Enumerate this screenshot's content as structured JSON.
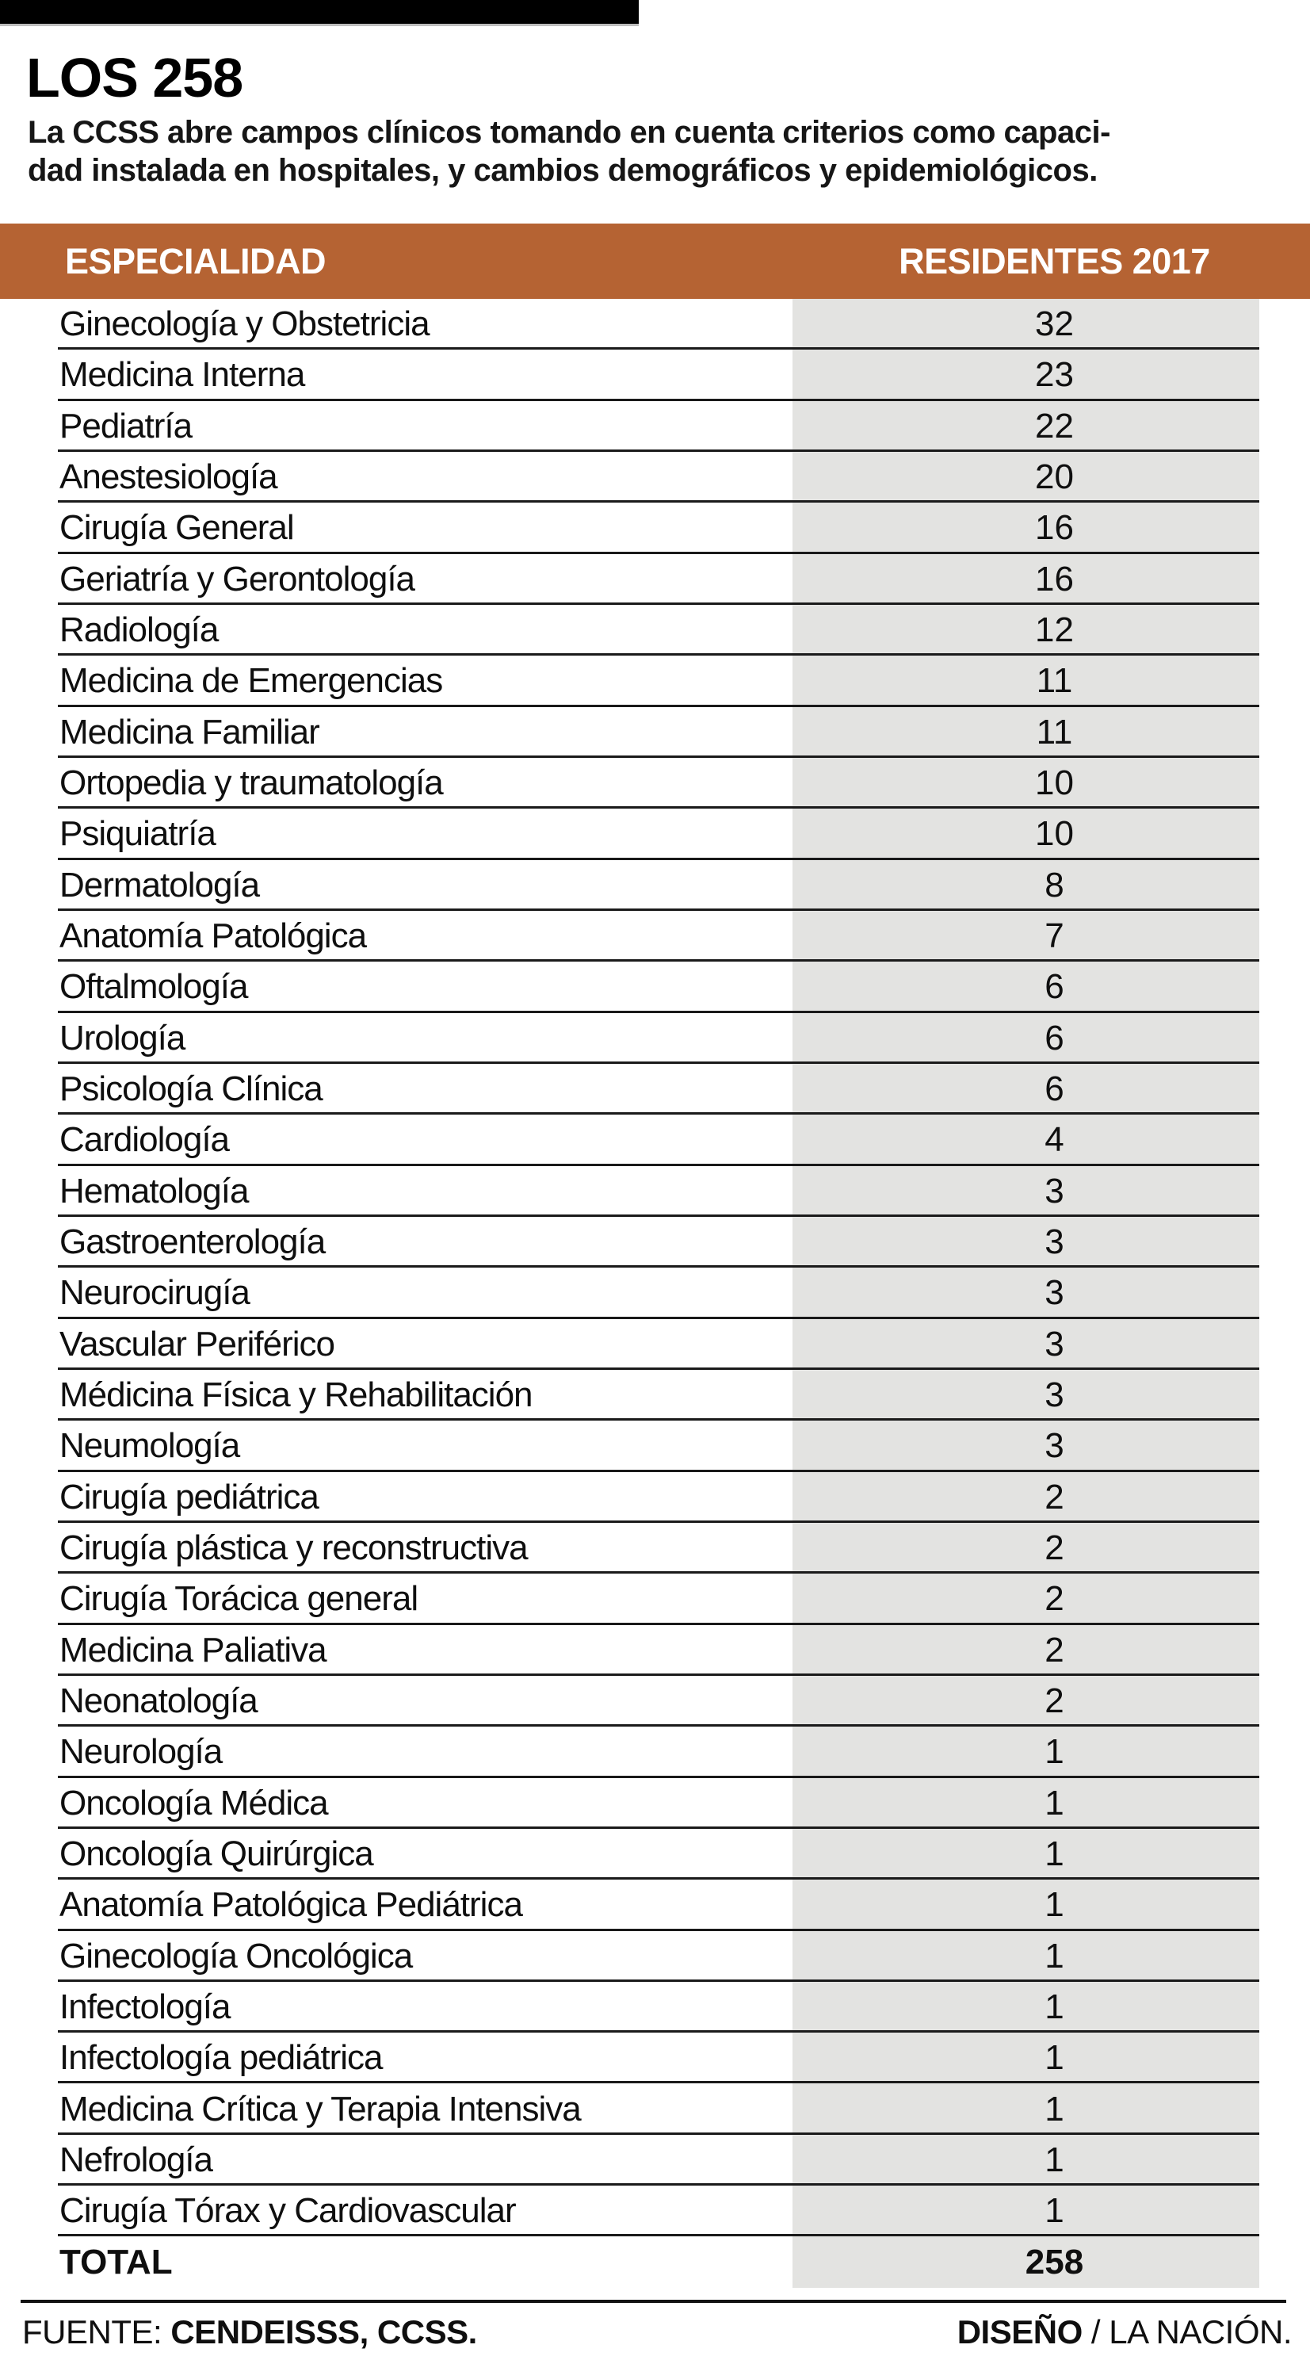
{
  "header": {
    "title": "LOS 258",
    "subtitle_line1": "La CCSS abre campos clínicos tomando en cuenta criterios como capaci-",
    "subtitle_line2": "dad instalada en hospitales, y cambios demográficos y epidemiológicos."
  },
  "table": {
    "col_especialidad": "ESPECIALIDAD",
    "col_residentes": "RESIDENTES 2017",
    "rows": [
      {
        "especialidad": "Ginecología y Obstetricia",
        "residentes": "32"
      },
      {
        "especialidad": "Medicina Interna",
        "residentes": "23"
      },
      {
        "especialidad": "Pediatría",
        "residentes": "22"
      },
      {
        "especialidad": "Anestesiología",
        "residentes": "20"
      },
      {
        "especialidad": "Cirugía General",
        "residentes": "16"
      },
      {
        "especialidad": "Geriatría y Gerontología",
        "residentes": "16"
      },
      {
        "especialidad": "Radiología",
        "residentes": "12"
      },
      {
        "especialidad": "Medicina de Emergencias",
        "residentes": "11"
      },
      {
        "especialidad": "Medicina Familiar",
        "residentes": "11"
      },
      {
        "especialidad": "Ortopedia y traumatología",
        "residentes": "10"
      },
      {
        "especialidad": "Psiquiatría",
        "residentes": "10"
      },
      {
        "especialidad": "Dermatología",
        "residentes": "8"
      },
      {
        "especialidad": "Anatomía Patológica",
        "residentes": "7"
      },
      {
        "especialidad": "Oftalmología",
        "residentes": "6"
      },
      {
        "especialidad": "Urología",
        "residentes": "6"
      },
      {
        "especialidad": "Psicología Clínica",
        "residentes": "6"
      },
      {
        "especialidad": "Cardiología",
        "residentes": "4"
      },
      {
        "especialidad": "Hematología",
        "residentes": "3"
      },
      {
        "especialidad": "Gastroenterología",
        "residentes": "3"
      },
      {
        "especialidad": "Neurocirugía",
        "residentes": "3"
      },
      {
        "especialidad": "Vascular Periférico",
        "residentes": "3"
      },
      {
        "especialidad": "Médicina Física y Rehabilitación",
        "residentes": "3"
      },
      {
        "especialidad": "Neumología",
        "residentes": "3"
      },
      {
        "especialidad": "Cirugía pediátrica",
        "residentes": "2"
      },
      {
        "especialidad": "Cirugía plástica y reconstructiva",
        "residentes": "2"
      },
      {
        "especialidad": "Cirugía Torácica general",
        "residentes": "2"
      },
      {
        "especialidad": "Medicina Paliativa",
        "residentes": "2"
      },
      {
        "especialidad": "Neonatología",
        "residentes": "2"
      },
      {
        "especialidad": "Neurología",
        "residentes": "1"
      },
      {
        "especialidad": "Oncología Médica",
        "residentes": "1"
      },
      {
        "especialidad": "Oncología Quirúrgica",
        "residentes": "1"
      },
      {
        "especialidad": "Anatomía Patológica Pediátrica",
        "residentes": "1"
      },
      {
        "especialidad": "Ginecología Oncológica",
        "residentes": "1"
      },
      {
        "especialidad": "Infectología",
        "residentes": "1"
      },
      {
        "especialidad": "Infectología pediátrica",
        "residentes": "1"
      },
      {
        "especialidad": "Medicina Crítica y Terapia Intensiva",
        "residentes": "1"
      },
      {
        "especialidad": "Nefrología",
        "residentes": "1"
      },
      {
        "especialidad": "Cirugía Tórax y Cardiovascular",
        "residentes": "1"
      }
    ],
    "total_label": "TOTAL",
    "total_value": "258"
  },
  "footer": {
    "fuente_label": "FUENTE:",
    "fuente_value": "CENDEISSS, CCSS.",
    "diseno_label": "DISEÑO",
    "diseno_value": "/ LA NACIÓN."
  },
  "colors": {
    "accent_orange": "#b56333",
    "cell_gray": "#e3e3e1",
    "divider_black": "#1a1a1a"
  },
  "chart_data": {
    "type": "table",
    "title": "LOS 258",
    "columns": [
      "ESPECIALIDAD",
      "RESIDENTES 2017"
    ],
    "categories": [
      "Ginecología y Obstetricia",
      "Medicina Interna",
      "Pediatría",
      "Anestesiología",
      "Cirugía General",
      "Geriatría y Gerontología",
      "Radiología",
      "Medicina de Emergencias",
      "Medicina Familiar",
      "Ortopedia y traumatología",
      "Psiquiatría",
      "Dermatología",
      "Anatomía Patológica",
      "Oftalmología",
      "Urología",
      "Psicología Clínica",
      "Cardiología",
      "Hematología",
      "Gastroenterología",
      "Neurocirugía",
      "Vascular Periférico",
      "Médicina Física y Rehabilitación",
      "Neumología",
      "Cirugía pediátrica",
      "Cirugía plástica y reconstructiva",
      "Cirugía Torácica general",
      "Medicina Paliativa",
      "Neonatología",
      "Neurología",
      "Oncología Médica",
      "Oncología Quirúrgica",
      "Anatomía Patológica Pediátrica",
      "Ginecología Oncológica",
      "Infectología",
      "Infectología pediátrica",
      "Medicina Crítica y Terapia Intensiva",
      "Nefrología",
      "Cirugía Tórax y Cardiovascular"
    ],
    "values": [
      32,
      23,
      22,
      20,
      16,
      16,
      12,
      11,
      11,
      10,
      10,
      8,
      7,
      6,
      6,
      6,
      4,
      3,
      3,
      3,
      3,
      3,
      3,
      2,
      2,
      2,
      2,
      2,
      1,
      1,
      1,
      1,
      1,
      1,
      1,
      1,
      1,
      1
    ],
    "total": 258
  }
}
